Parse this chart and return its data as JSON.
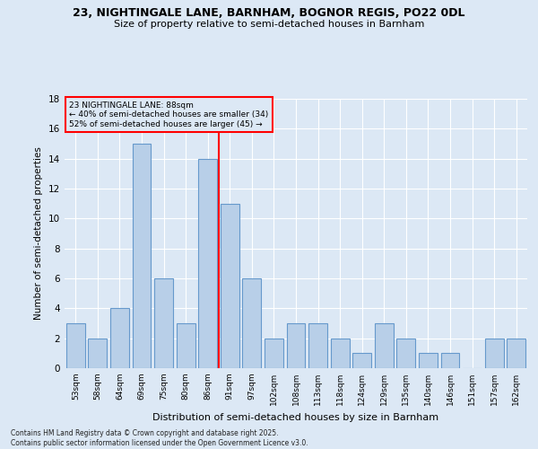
{
  "title1": "23, NIGHTINGALE LANE, BARNHAM, BOGNOR REGIS, PO22 0DL",
  "title2": "Size of property relative to semi-detached houses in Barnham",
  "xlabel": "Distribution of semi-detached houses by size in Barnham",
  "ylabel": "Number of semi-detached properties",
  "categories": [
    "53sqm",
    "58sqm",
    "64sqm",
    "69sqm",
    "75sqm",
    "80sqm",
    "86sqm",
    "91sqm",
    "97sqm",
    "102sqm",
    "108sqm",
    "113sqm",
    "118sqm",
    "124sqm",
    "129sqm",
    "135sqm",
    "140sqm",
    "146sqm",
    "151sqm",
    "157sqm",
    "162sqm"
  ],
  "values": [
    3,
    2,
    4,
    15,
    6,
    3,
    14,
    11,
    6,
    2,
    3,
    3,
    2,
    1,
    3,
    2,
    1,
    1,
    0,
    2,
    2
  ],
  "bar_color": "#b8cfe8",
  "bar_edge_color": "#6699cc",
  "red_line_x": 6.5,
  "annotation_title": "23 NIGHTINGALE LANE: 88sqm",
  "annotation_line2": "← 40% of semi-detached houses are smaller (34)",
  "annotation_line3": "52% of semi-detached houses are larger (45) →",
  "ylim": [
    0,
    18
  ],
  "yticks": [
    0,
    2,
    4,
    6,
    8,
    10,
    12,
    14,
    16,
    18
  ],
  "bg_color": "#dce8f5",
  "grid_color": "#ffffff",
  "footnote1": "Contains HM Land Registry data © Crown copyright and database right 2025.",
  "footnote2": "Contains public sector information licensed under the Open Government Licence v3.0."
}
